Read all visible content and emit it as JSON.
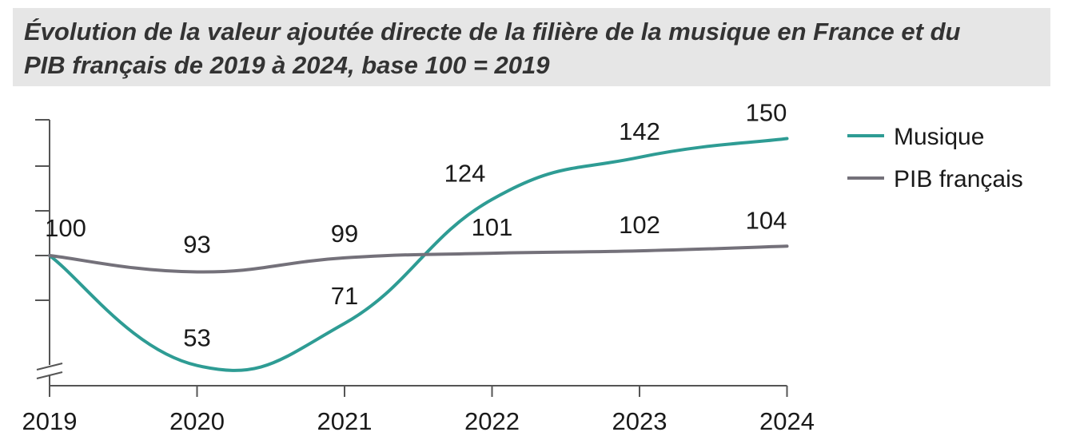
{
  "chart_data": {
    "type": "line",
    "title": "Évolution de la valeur ajoutée  directe de la filière de la musique en France et du PIB français de 2019 à 2024, base 100 = 2019",
    "title_lines": [
      "Évolution de la valeur ajoutée  directe de la filière de la musique en France et du",
      "PIB français de 2019 à 2024, base 100 = 2019"
    ],
    "categories": [
      "2019",
      "2020",
      "2021",
      "2022",
      "2023",
      "2024"
    ],
    "series": [
      {
        "name": "Musique",
        "color": "#2e9c94",
        "values": [
          100,
          53,
          71,
          124,
          142,
          150
        ]
      },
      {
        "name": "PIB français",
        "color": "#74717a",
        "values": [
          100,
          93,
          99,
          101,
          102,
          104
        ]
      }
    ],
    "xlabel": "",
    "ylabel": "",
    "ylim": [
      40,
      160
    ],
    "axis_break": true,
    "legend": "right"
  }
}
